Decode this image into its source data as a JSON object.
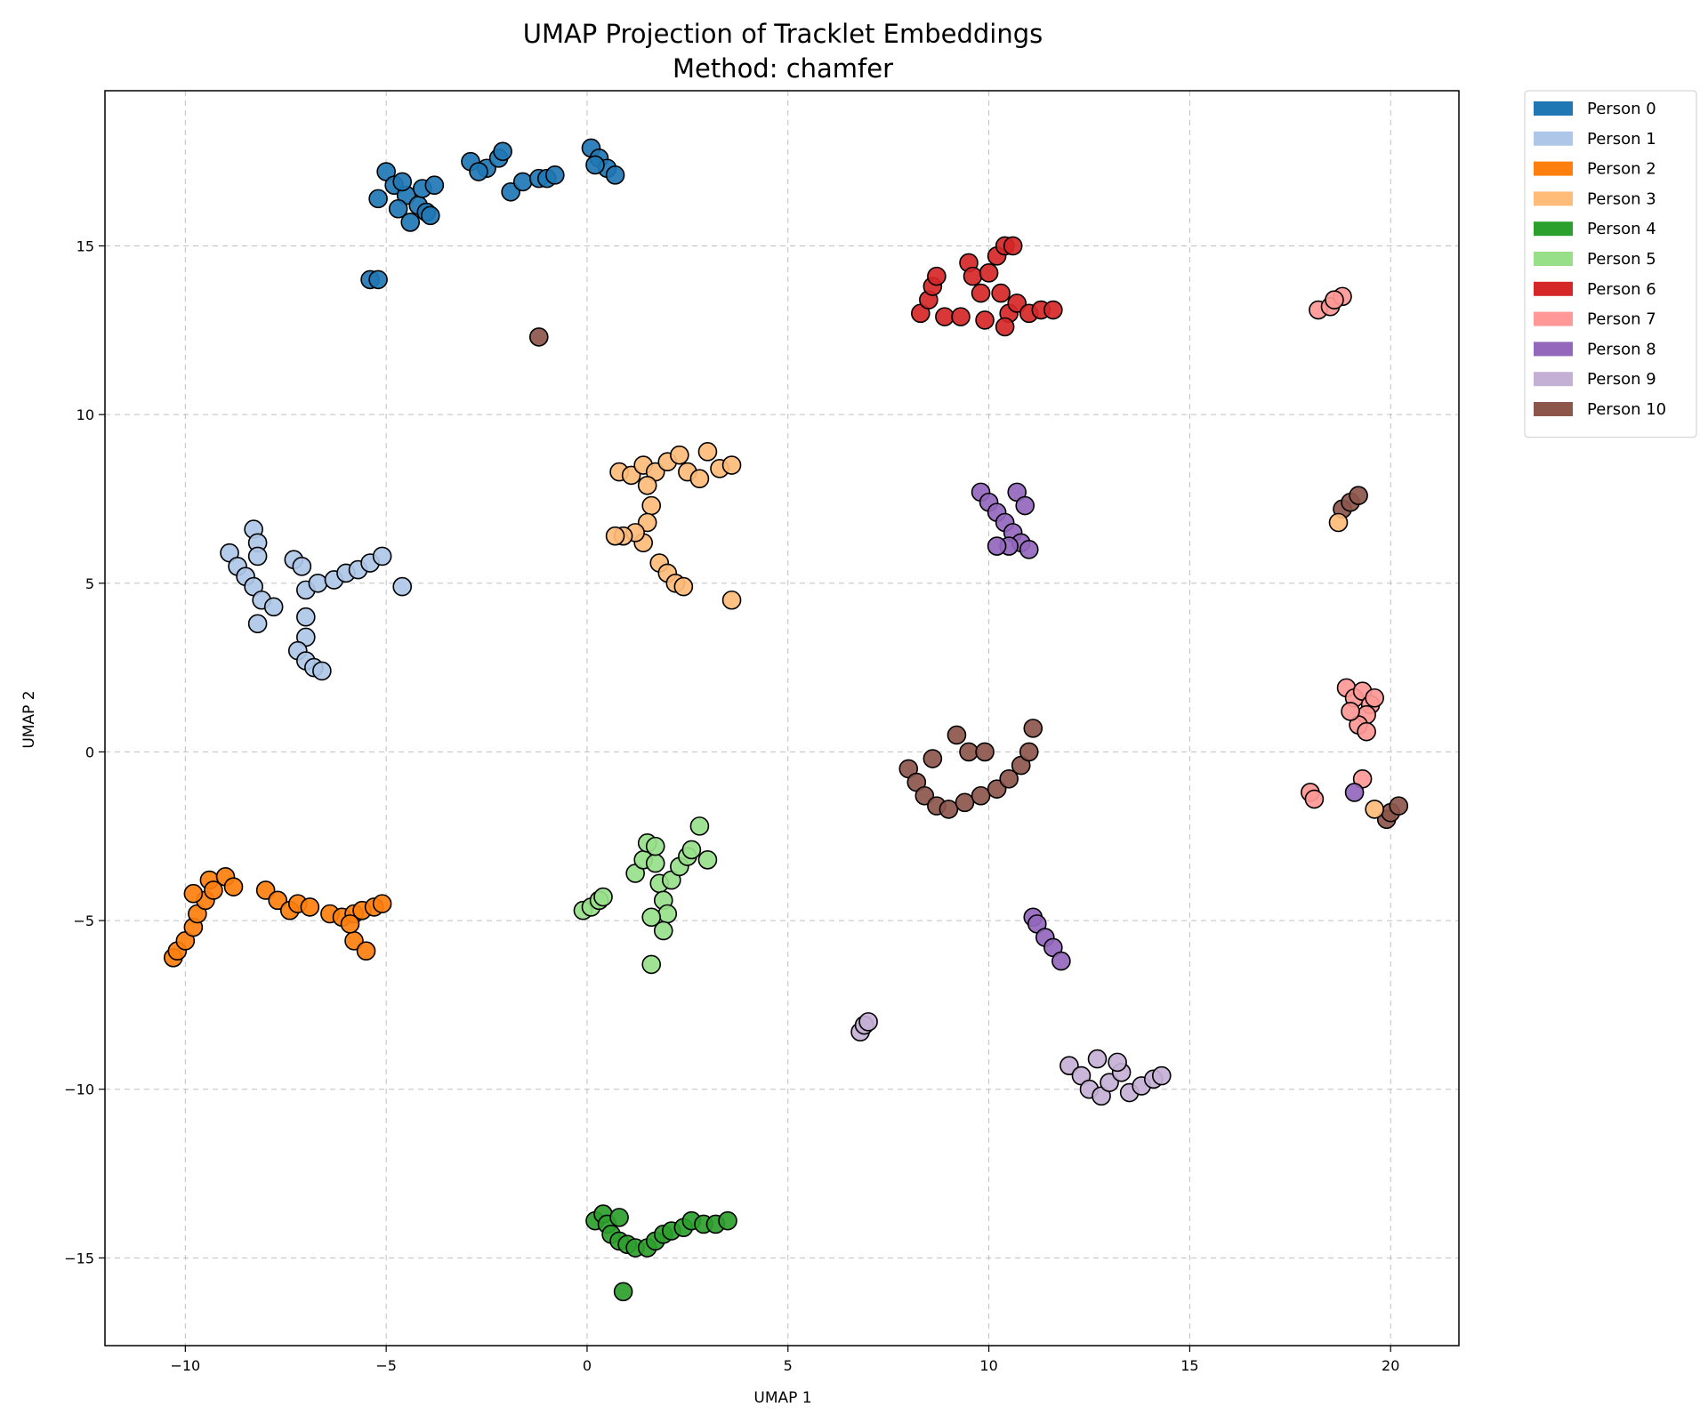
{
  "chart_data": {
    "type": "scatter",
    "title": "UMAP Projection of Tracklet Embeddings",
    "subtitle": "Method: chamfer",
    "xlabel": "UMAP 1",
    "ylabel": "UMAP 2",
    "xlim": [
      -12,
      21.7
    ],
    "ylim": [
      -17.6,
      19.6
    ],
    "xticks": [
      -10,
      -5,
      0,
      5,
      10,
      15,
      20
    ],
    "yticks": [
      -15,
      -10,
      -5,
      0,
      5,
      10,
      15
    ],
    "xtick_labels": [
      "−10",
      "−5",
      "0",
      "5",
      "10",
      "15",
      "20"
    ],
    "ytick_labels": [
      "−15",
      "−10",
      "−5",
      "0",
      "5",
      "10",
      "15"
    ],
    "grid": true,
    "legend_position": "outside-top-right",
    "series": [
      {
        "name": "Person 0",
        "color": "#1f77b4",
        "points": [
          [
            -5,
            17.2
          ],
          [
            -4.8,
            16.8
          ],
          [
            -4.5,
            16.5
          ],
          [
            -4.2,
            16.2
          ],
          [
            -4,
            16
          ],
          [
            -4.4,
            15.7
          ],
          [
            -4.6,
            16.9
          ],
          [
            -5.2,
            16.4
          ],
          [
            -4.1,
            16.7
          ],
          [
            -3.8,
            16.8
          ],
          [
            -3.9,
            15.9
          ],
          [
            -4.7,
            16.1
          ],
          [
            -5.4,
            14
          ],
          [
            -5.2,
            14
          ],
          [
            -2.9,
            17.5
          ],
          [
            -2.5,
            17.3
          ],
          [
            -2.2,
            17.6
          ],
          [
            -2.7,
            17.2
          ],
          [
            -2.1,
            17.8
          ],
          [
            -1.9,
            16.6
          ],
          [
            -1.6,
            16.9
          ],
          [
            -1.2,
            17
          ],
          [
            -1,
            17
          ],
          [
            -0.8,
            17.1
          ],
          [
            0.1,
            17.9
          ],
          [
            0.3,
            17.6
          ],
          [
            0.5,
            17.3
          ],
          [
            0.7,
            17.1
          ],
          [
            0.2,
            17.4
          ]
        ]
      },
      {
        "name": "Person 1",
        "color": "#aec7e8",
        "points": [
          [
            -8.9,
            5.9
          ],
          [
            -8.7,
            5.5
          ],
          [
            -8.5,
            5.2
          ],
          [
            -8.3,
            4.9
          ],
          [
            -8.1,
            4.5
          ],
          [
            -8.2,
            3.8
          ],
          [
            -8.3,
            6.6
          ],
          [
            -8.2,
            6.2
          ],
          [
            -8.2,
            5.8
          ],
          [
            -7.8,
            4.3
          ],
          [
            -7.3,
            5.7
          ],
          [
            -7.1,
            5.5
          ],
          [
            -7,
            4.8
          ],
          [
            -7,
            4
          ],
          [
            -7,
            3.4
          ],
          [
            -7.2,
            3
          ],
          [
            -7,
            2.7
          ],
          [
            -6.8,
            2.5
          ],
          [
            -6.6,
            2.4
          ],
          [
            -6.7,
            5
          ],
          [
            -6.3,
            5.1
          ],
          [
            -6,
            5.3
          ],
          [
            -5.7,
            5.4
          ],
          [
            -5.4,
            5.6
          ],
          [
            -5.1,
            5.8
          ],
          [
            -4.6,
            4.9
          ]
        ]
      },
      {
        "name": "Person 2",
        "color": "#ff7f0e",
        "points": [
          [
            -10.3,
            -6.1
          ],
          [
            -10.2,
            -5.9
          ],
          [
            -10,
            -5.6
          ],
          [
            -9.8,
            -5.2
          ],
          [
            -9.7,
            -4.8
          ],
          [
            -9.5,
            -4.4
          ],
          [
            -9.8,
            -4.2
          ],
          [
            -9.4,
            -3.8
          ],
          [
            -9,
            -3.7
          ],
          [
            -8.8,
            -4
          ],
          [
            -9.3,
            -4.1
          ],
          [
            -8,
            -4.1
          ],
          [
            -7.7,
            -4.4
          ],
          [
            -7.4,
            -4.7
          ],
          [
            -7.2,
            -4.5
          ],
          [
            -6.9,
            -4.6
          ],
          [
            -6.4,
            -4.8
          ],
          [
            -6.1,
            -4.9
          ],
          [
            -5.8,
            -4.8
          ],
          [
            -5.6,
            -4.7
          ],
          [
            -5.3,
            -4.6
          ],
          [
            -5.1,
            -4.5
          ],
          [
            -5.8,
            -5.6
          ],
          [
            -5.5,
            -5.9
          ],
          [
            -5.9,
            -5.1
          ]
        ]
      },
      {
        "name": "Person 3",
        "color": "#ffbb78",
        "points": [
          [
            0.8,
            8.3
          ],
          [
            1.1,
            8.2
          ],
          [
            1.4,
            8.5
          ],
          [
            1.7,
            8.3
          ],
          [
            2,
            8.6
          ],
          [
            2.3,
            8.8
          ],
          [
            2.5,
            8.3
          ],
          [
            2.8,
            8.1
          ],
          [
            3,
            8.9
          ],
          [
            3.3,
            8.4
          ],
          [
            3.6,
            8.5
          ],
          [
            1.5,
            7.9
          ],
          [
            1.6,
            7.3
          ],
          [
            1.5,
            6.8
          ],
          [
            1.4,
            6.2
          ],
          [
            1.2,
            6.5
          ],
          [
            0.9,
            6.4
          ],
          [
            0.7,
            6.4
          ],
          [
            1.8,
            5.6
          ],
          [
            2,
            5.3
          ],
          [
            2.2,
            5
          ],
          [
            2.4,
            4.9
          ],
          [
            3.6,
            4.5
          ]
        ]
      },
      {
        "name": "Person 4",
        "color": "#2ca02c",
        "points": [
          [
            0.2,
            -13.9
          ],
          [
            0.4,
            -13.7
          ],
          [
            0.5,
            -14
          ],
          [
            0.6,
            -14.3
          ],
          [
            0.8,
            -14.5
          ],
          [
            1,
            -14.6
          ],
          [
            1.2,
            -14.7
          ],
          [
            1.5,
            -14.7
          ],
          [
            1.7,
            -14.5
          ],
          [
            1.9,
            -14.3
          ],
          [
            2.1,
            -14.2
          ],
          [
            2.4,
            -14.1
          ],
          [
            2.6,
            -13.9
          ],
          [
            2.9,
            -14
          ],
          [
            3.2,
            -14
          ],
          [
            3.5,
            -13.9
          ],
          [
            0.8,
            -13.8
          ],
          [
            0.9,
            -16
          ]
        ]
      },
      {
        "name": "Person 5",
        "color": "#98df8a",
        "points": [
          [
            -0.1,
            -4.7
          ],
          [
            0.1,
            -4.6
          ],
          [
            0.3,
            -4.4
          ],
          [
            0.4,
            -4.3
          ],
          [
            1.2,
            -3.6
          ],
          [
            1.4,
            -3.2
          ],
          [
            1.5,
            -2.7
          ],
          [
            1.7,
            -3.3
          ],
          [
            1.8,
            -3.9
          ],
          [
            1.9,
            -4.4
          ],
          [
            2,
            -4.8
          ],
          [
            2.1,
            -3.8
          ],
          [
            2.3,
            -3.4
          ],
          [
            2.5,
            -3.1
          ],
          [
            2.6,
            -2.9
          ],
          [
            2.8,
            -2.2
          ],
          [
            3,
            -3.2
          ],
          [
            1.6,
            -4.9
          ],
          [
            1.9,
            -5.3
          ],
          [
            1.6,
            -6.3
          ],
          [
            1.7,
            -2.8
          ]
        ]
      },
      {
        "name": "Person 6",
        "color": "#d62728",
        "points": [
          [
            8.3,
            13
          ],
          [
            8.5,
            13.4
          ],
          [
            8.6,
            13.8
          ],
          [
            8.7,
            14.1
          ],
          [
            8.9,
            12.9
          ],
          [
            9.3,
            12.9
          ],
          [
            9.5,
            14.5
          ],
          [
            9.6,
            14.1
          ],
          [
            9.8,
            13.6
          ],
          [
            10,
            14.2
          ],
          [
            10.2,
            14.7
          ],
          [
            10.4,
            15
          ],
          [
            10.6,
            15
          ],
          [
            10.3,
            13.6
          ],
          [
            10.5,
            13
          ],
          [
            10.7,
            13.3
          ],
          [
            11,
            13
          ],
          [
            11.3,
            13.1
          ],
          [
            11.6,
            13.1
          ],
          [
            10.4,
            12.6
          ],
          [
            9.9,
            12.8
          ]
        ]
      },
      {
        "name": "Person 7",
        "color": "#ff9896",
        "points": [
          [
            18.2,
            13.1
          ],
          [
            18.5,
            13.2
          ],
          [
            18.8,
            13.5
          ],
          [
            18.6,
            13.4
          ],
          [
            18.9,
            1.9
          ],
          [
            19.1,
            1.6
          ],
          [
            19.3,
            1.8
          ],
          [
            19.5,
            1.4
          ],
          [
            19.4,
            1.1
          ],
          [
            19.2,
            0.8
          ],
          [
            19.6,
            1.6
          ],
          [
            19.4,
            0.6
          ],
          [
            19,
            1.2
          ],
          [
            18,
            -1.2
          ],
          [
            18.1,
            -1.4
          ],
          [
            19.3,
            -0.8
          ]
        ]
      },
      {
        "name": "Person 8",
        "color": "#9467bd",
        "points": [
          [
            9.8,
            7.7
          ],
          [
            10,
            7.4
          ],
          [
            10.2,
            7.1
          ],
          [
            10.4,
            6.8
          ],
          [
            10.6,
            6.5
          ],
          [
            10.8,
            6.2
          ],
          [
            11,
            6
          ],
          [
            10.7,
            7.7
          ],
          [
            10.9,
            7.3
          ],
          [
            10.5,
            6.1
          ],
          [
            10.2,
            6.1
          ],
          [
            11.1,
            -4.9
          ],
          [
            11.2,
            -5.1
          ],
          [
            11.4,
            -5.5
          ],
          [
            11.6,
            -5.8
          ],
          [
            11.8,
            -6.2
          ],
          [
            19.1,
            -1.2
          ]
        ]
      },
      {
        "name": "Person 9",
        "color": "#c5b0d5",
        "points": [
          [
            6.8,
            -8.3
          ],
          [
            6.9,
            -8.1
          ],
          [
            7,
            -8
          ],
          [
            12,
            -9.3
          ],
          [
            12.3,
            -9.6
          ],
          [
            12.5,
            -10
          ],
          [
            12.8,
            -10.2
          ],
          [
            13,
            -9.8
          ],
          [
            13.3,
            -9.5
          ],
          [
            13.5,
            -10.1
          ],
          [
            13.8,
            -9.9
          ],
          [
            14.1,
            -9.7
          ],
          [
            14.3,
            -9.6
          ],
          [
            12.7,
            -9.1
          ],
          [
            13.2,
            -9.2
          ]
        ]
      },
      {
        "name": "Person 10",
        "color": "#8c564b",
        "points": [
          [
            -1.2,
            12.3
          ],
          [
            8,
            -0.5
          ],
          [
            8.2,
            -0.9
          ],
          [
            8.4,
            -1.3
          ],
          [
            8.7,
            -1.6
          ],
          [
            9,
            -1.7
          ],
          [
            9.4,
            -1.5
          ],
          [
            9.8,
            -1.3
          ],
          [
            10.2,
            -1.1
          ],
          [
            10.5,
            -0.8
          ],
          [
            10.8,
            -0.4
          ],
          [
            11,
            0
          ],
          [
            11.1,
            0.7
          ],
          [
            9.2,
            0.5
          ],
          [
            9.5,
            0
          ],
          [
            9.9,
            0
          ],
          [
            8.6,
            -0.2
          ],
          [
            19.9,
            -2
          ],
          [
            20,
            -1.8
          ],
          [
            20.2,
            -1.6
          ],
          [
            18.8,
            7.2
          ],
          [
            19,
            7.4
          ],
          [
            19.2,
            7.6
          ]
        ]
      },
      {
        "name": "",
        "color": "#ffbb78",
        "points": [
          [
            18.7,
            6.8
          ],
          [
            19.6,
            -1.7
          ]
        ]
      }
    ]
  }
}
